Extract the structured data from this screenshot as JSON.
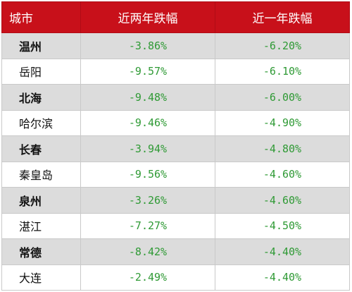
{
  "table": {
    "headers": [
      "城市",
      "近两年跌幅",
      "近一年跌幅"
    ],
    "rows": [
      {
        "city": "温州",
        "two_year": "-3.86%",
        "one_year": "-6.20%"
      },
      {
        "city": "岳阳",
        "two_year": "-9.57%",
        "one_year": "-6.10%"
      },
      {
        "city": "北海",
        "two_year": "-9.48%",
        "one_year": "-6.00%"
      },
      {
        "city": "哈尔滨",
        "two_year": "-9.46%",
        "one_year": "-4.90%"
      },
      {
        "city": "长春",
        "two_year": "-3.94%",
        "one_year": "-4.80%"
      },
      {
        "city": "秦皇岛",
        "two_year": "-9.56%",
        "one_year": "-4.60%"
      },
      {
        "city": "泉州",
        "two_year": "-3.26%",
        "one_year": "-4.60%"
      },
      {
        "city": "湛江",
        "two_year": "-7.27%",
        "one_year": "-4.50%"
      },
      {
        "city": "常德",
        "two_year": "-8.42%",
        "one_year": "-4.40%"
      },
      {
        "city": "大连",
        "two_year": "-2.49%",
        "one_year": "-4.40%"
      }
    ]
  },
  "colors": {
    "header_bg": "#c8101a",
    "header_text": "#ffffff",
    "value_text": "#2f9a35",
    "shaded_row_bg": "#dcdcdc"
  }
}
